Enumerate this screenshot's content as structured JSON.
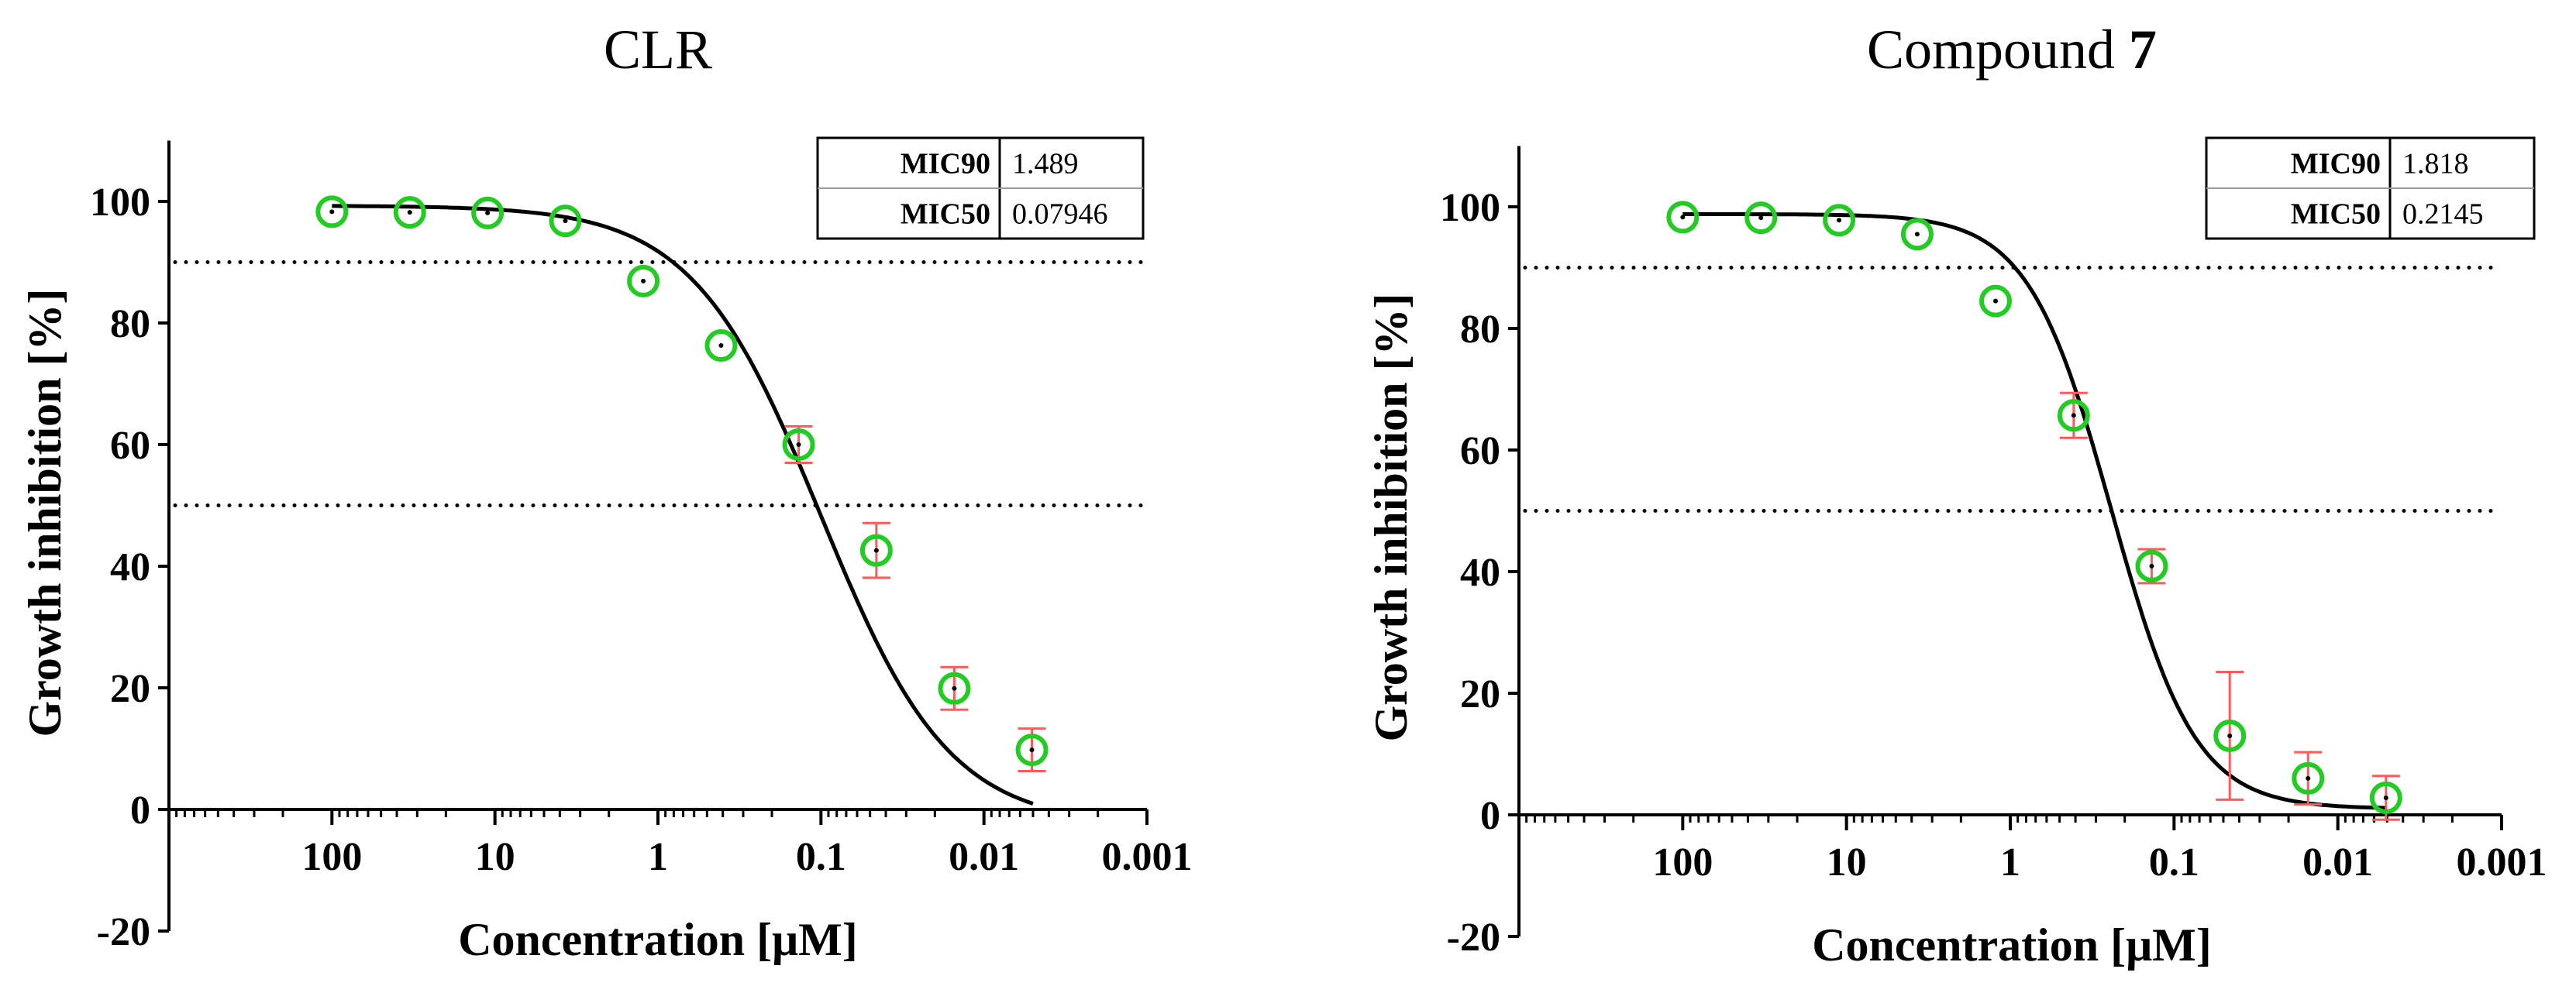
{
  "colors": {
    "marker": "#22cc22",
    "errorbar": "#ff5a5a",
    "curve": "#000000",
    "axis": "#000000"
  },
  "chart_data": [
    {
      "type": "scatter",
      "title": "CLR",
      "xlabel": "Concentration [μM]",
      "ylabel": "Growth inhibition [%]",
      "xscale": "log",
      "xreversed": true,
      "xlim": [
        1000,
        0.001
      ],
      "ylim": [
        -20,
        110
      ],
      "xticks": [
        100,
        10,
        1,
        0.1,
        0.01,
        0.001
      ],
      "xtick_labels": [
        "100",
        "10",
        "1",
        "0.1",
        "0.01",
        "0.001"
      ],
      "yticks": [
        -20,
        0,
        20,
        40,
        60,
        80,
        100
      ],
      "ytick_labels": [
        "-20",
        "0",
        "20",
        "40",
        "60",
        "80",
        "100"
      ],
      "reference_lines": [
        90,
        50
      ],
      "table": [
        {
          "label": "MIC90",
          "value": "1.489"
        },
        {
          "label": "MIC50",
          "value": "0.07946"
        }
      ],
      "fit": {
        "top": 99.3,
        "bottom": -2.7,
        "log_ic50": -1.0,
        "hill": 1.1,
        "x_from": 100,
        "x_to": 0.005
      },
      "series": [
        {
          "name": "CLR",
          "points": [
            {
              "x": 100,
              "y": 98.3,
              "err": 0
            },
            {
              "x": 33.3,
              "y": 98.2,
              "err": 0
            },
            {
              "x": 11.1,
              "y": 98.1,
              "err": 0
            },
            {
              "x": 3.7,
              "y": 96.8,
              "err": 0
            },
            {
              "x": 1.23,
              "y": 86.9,
              "err": 0
            },
            {
              "x": 0.41,
              "y": 76.3,
              "err": 0
            },
            {
              "x": 0.137,
              "y": 60.0,
              "err": 3.0
            },
            {
              "x": 0.0457,
              "y": 42.6,
              "err": 4.5
            },
            {
              "x": 0.0152,
              "y": 19.9,
              "err": 3.5
            },
            {
              "x": 0.00508,
              "y": 9.8,
              "err": 3.5
            }
          ]
        }
      ]
    },
    {
      "type": "scatter",
      "title": "Compound 7",
      "title_parts": [
        "Compound ",
        "7"
      ],
      "xlabel": "Concentration [μM]",
      "ylabel": "Growth inhibition [%]",
      "xscale": "log",
      "xreversed": true,
      "xlim": [
        1000,
        0.001
      ],
      "ylim": [
        -20,
        110
      ],
      "xticks": [
        100,
        10,
        1,
        0.1,
        0.01,
        0.001
      ],
      "xtick_labels": [
        "100",
        "10",
        "1",
        "0.1",
        "0.01",
        "0.001"
      ],
      "yticks": [
        -20,
        0,
        20,
        40,
        60,
        80,
        100
      ],
      "ytick_labels": [
        "-20",
        "0",
        "20",
        "40",
        "60",
        "80",
        "100"
      ],
      "reference_lines": [
        90,
        50
      ],
      "table": [
        {
          "label": "MIC90",
          "value": "1.818"
        },
        {
          "label": "MIC50",
          "value": "0.2145"
        }
      ],
      "fit": {
        "top": 98.8,
        "bottom": 1.0,
        "log_ic50": -0.62,
        "hill": 1.7,
        "x_from": 100,
        "x_to": 0.005
      },
      "series": [
        {
          "name": "Compound 7",
          "points": [
            {
              "x": 100,
              "y": 98.3,
              "err": 0
            },
            {
              "x": 33.3,
              "y": 98.2,
              "err": 0
            },
            {
              "x": 11.1,
              "y": 97.8,
              "err": 0
            },
            {
              "x": 3.7,
              "y": 95.5,
              "err": 0
            },
            {
              "x": 1.23,
              "y": 84.5,
              "err": 0
            },
            {
              "x": 0.41,
              "y": 65.7,
              "err": 3.7
            },
            {
              "x": 0.137,
              "y": 40.9,
              "err": 2.8
            },
            {
              "x": 0.0457,
              "y": 13.0,
              "err": 10.5
            },
            {
              "x": 0.0152,
              "y": 6.0,
              "err": 4.3
            },
            {
              "x": 0.00508,
              "y": 2.8,
              "err": 3.6
            }
          ]
        }
      ]
    }
  ]
}
